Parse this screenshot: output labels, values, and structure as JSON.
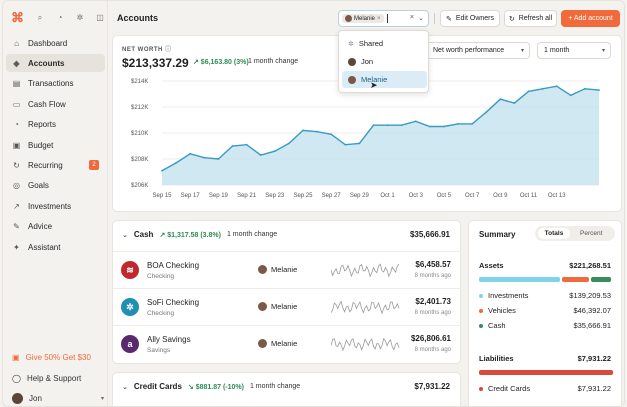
{
  "sidebar": {
    "items": [
      {
        "label": "Dashboard",
        "icon": "dashboard-icon",
        "glyph": "⌂"
      },
      {
        "label": "Accounts",
        "icon": "accounts-icon",
        "glyph": "◈"
      },
      {
        "label": "Transactions",
        "icon": "transactions-icon",
        "glyph": "▤"
      },
      {
        "label": "Cash Flow",
        "icon": "cashflow-icon",
        "glyph": "▭"
      },
      {
        "label": "Reports",
        "icon": "reports-icon",
        "glyph": "◔"
      },
      {
        "label": "Budget",
        "icon": "budget-icon",
        "glyph": "▣"
      },
      {
        "label": "Recurring",
        "icon": "recurring-icon",
        "glyph": "↻",
        "badge": "2"
      },
      {
        "label": "Goals",
        "icon": "goals-icon",
        "glyph": "◎"
      },
      {
        "label": "Investments",
        "icon": "investments-icon",
        "glyph": "↗"
      },
      {
        "label": "Advice",
        "icon": "advice-icon",
        "glyph": "✎"
      },
      {
        "label": "Assistant",
        "icon": "assistant-icon",
        "glyph": "✦"
      }
    ],
    "promo": "Give 50% Get $30",
    "help": "Help & Support",
    "user": "Jon"
  },
  "header": {
    "title": "Accounts",
    "filter_chip": "Melanie",
    "edit_owners": "Edit Owners",
    "refresh_all": "Refresh all",
    "add_account": "+ Add account"
  },
  "dropdown": {
    "options": [
      "Shared",
      "Jon",
      "Melanie"
    ],
    "highlighted": "Melanie"
  },
  "net_worth": {
    "label": "NET WORTH",
    "value": "$213,337.29",
    "change": "↗ $6,163.80 (3%)",
    "period": "1 month change",
    "performance_select": "Net worth performance",
    "range_select": "1 month"
  },
  "chart_data": {
    "type": "area",
    "x": [
      "Sep 15",
      "Sep 16",
      "Sep 17",
      "Sep 18",
      "Sep 19",
      "Sep 20",
      "Sep 21",
      "Sep 22",
      "Sep 23",
      "Sep 24",
      "Sep 25",
      "Sep 26",
      "Sep 27",
      "Sep 28",
      "Sep 29",
      "Sep 30",
      "Oct 1",
      "Oct 2",
      "Oct 3",
      "Oct 4",
      "Oct 5",
      "Oct 6",
      "Oct 7",
      "Oct 8",
      "Oct 9",
      "Oct 10",
      "Oct 11",
      "Oct 12",
      "Oct 13",
      "Oct 14",
      "Oct 15",
      "Oct 16"
    ],
    "values": [
      207100,
      207700,
      208400,
      208100,
      208000,
      209000,
      209100,
      208300,
      208600,
      209200,
      210200,
      210100,
      209900,
      209100,
      209200,
      210600,
      210600,
      210600,
      210900,
      210500,
      210500,
      210700,
      210700,
      211600,
      212600,
      212300,
      213200,
      213400,
      213600,
      212900,
      213400,
      213300
    ],
    "x_tick_labels": [
      "Sep 15",
      "Sep 17",
      "Sep 19",
      "Sep 21",
      "Sep 23",
      "Sep 25",
      "Sep 27",
      "Sep 29",
      "Oct 1",
      "Oct 3",
      "Oct 5",
      "Oct 7",
      "Oct 9",
      "Oct 11",
      "Oct 13"
    ],
    "y_tick_labels": [
      "$206K",
      "$208K",
      "$210K",
      "$212K",
      "$214K"
    ],
    "ylim": [
      206000,
      214000
    ],
    "line_color": "#3a9ac4",
    "fill_color": "#bfe0ee"
  },
  "cash": {
    "title": "Cash",
    "change": "↗ $1,317.58 (3.8%)",
    "period": "1 month change",
    "total": "$35,666.91",
    "accounts": [
      {
        "name": "BOA Checking",
        "type": "Checking",
        "owner": "Melanie",
        "balance": "$6,458.57",
        "ago": "8 months ago",
        "logo_color": "#c0282d",
        "logo_glyph": "≋"
      },
      {
        "name": "SoFi Checking",
        "type": "Checking",
        "owner": "Melanie",
        "balance": "$2,401.73",
        "ago": "8 months ago",
        "logo_color": "#1f8fb3",
        "logo_glyph": "✲"
      },
      {
        "name": "Ally Savings",
        "type": "Savings",
        "owner": "Melanie",
        "balance": "$26,806.61",
        "ago": "8 months ago",
        "logo_color": "#5a2a6e",
        "logo_glyph": "a"
      }
    ]
  },
  "credit_cards": {
    "title": "Credit Cards",
    "change": "↘ $881.87 (-10%)",
    "period": "1 month change",
    "total": "$7,931.22"
  },
  "summary": {
    "title": "Summary",
    "tab_totals": "Totals",
    "tab_percent": "Percent",
    "assets_label": "Assets",
    "assets_total": "$221,268.51",
    "asset_items": [
      {
        "label": "Investments",
        "value": "$139,209.53",
        "color": "#7fd3ea"
      },
      {
        "label": "Vehicles",
        "value": "$46,392.07",
        "color": "#f06a3c"
      },
      {
        "label": "Cash",
        "value": "$35,666.91",
        "color": "#3a8c5c"
      }
    ],
    "liabilities_label": "Liabilities",
    "liabilities_total": "$7,931.22",
    "liability_items": [
      {
        "label": "Credit Cards",
        "value": "$7,931.22",
        "color": "#d94a3d"
      }
    ]
  }
}
